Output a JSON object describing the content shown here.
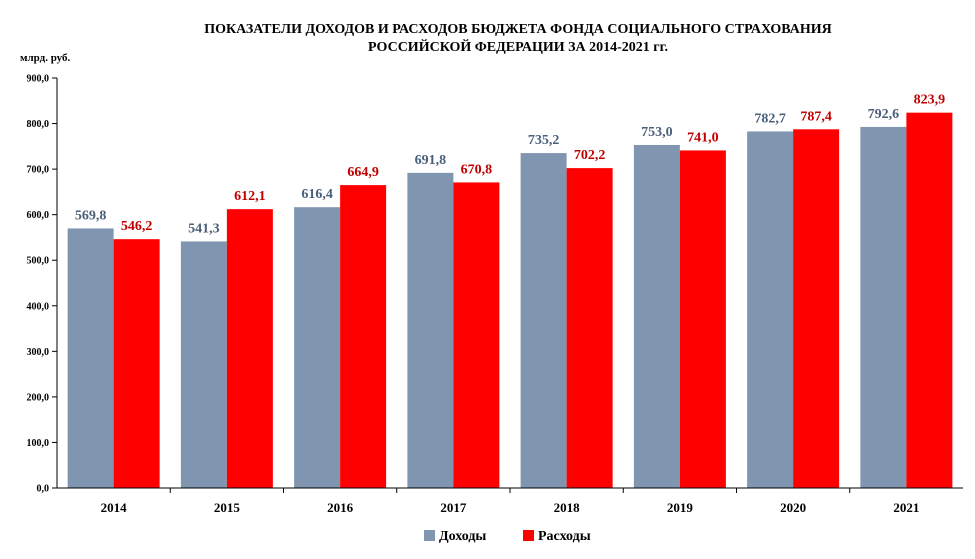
{
  "chart_data": {
    "type": "bar",
    "title": "ПОКАЗАТЕЛИ  ДОХОДОВ И РАСХОДОВ БЮДЖЕТА  ФОНДА СОЦИАЛЬНОГО  СТРАХОВАНИЯ",
    "subtitle": "РОССИЙСКОЙ  ФЕДЕРАЦИИ  ЗА 2014-2021 гг.",
    "ylabel": "млрд. руб.",
    "xlabel": "",
    "ylim": [
      0,
      900
    ],
    "yticks": [
      "0,0",
      "100,0",
      "200,0",
      "300,0",
      "400,0",
      "500,0",
      "600,0",
      "700,0",
      "800,0",
      "900,0"
    ],
    "categories": [
      "2014",
      "2015",
      "2016",
      "2017",
      "2018",
      "2019",
      "2020",
      "2021"
    ],
    "series": [
      {
        "name": "Доходы",
        "color": "#8096B0",
        "label_color": "#4A5F7A",
        "values": [
          569.8,
          541.3,
          616.4,
          691.8,
          735.2,
          753.0,
          782.7,
          792.6
        ],
        "labels": [
          "569,8",
          "541,3",
          "616,4",
          "691,8",
          "735,2",
          "753,0",
          "782,7",
          "792,6"
        ]
      },
      {
        "name": "Расходы",
        "color": "#FF0000",
        "label_color": "#C00000",
        "values": [
          546.2,
          612.1,
          664.9,
          670.8,
          702.2,
          741.0,
          787.4,
          823.9
        ],
        "labels": [
          "546,2",
          "612,1",
          "664,9",
          "670,8",
          "702,2",
          "741,0",
          "787,4",
          "823,9"
        ]
      }
    ],
    "grid": false,
    "legend_position": "bottom-center"
  }
}
